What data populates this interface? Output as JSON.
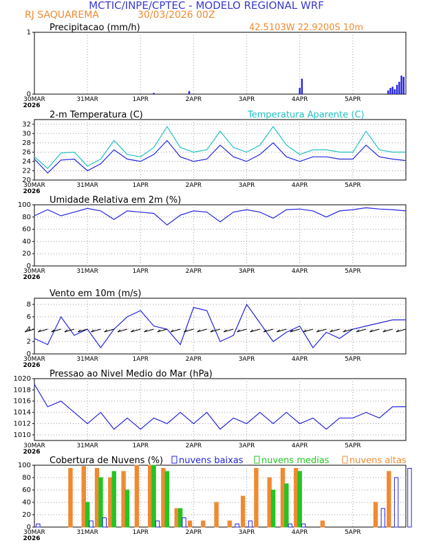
{
  "header": {
    "title": "MCTIC/INPE/CPTEC - MODELO REGIONAL WRF",
    "location": "RJ SAQUAREMA",
    "run": "30/03/2026 00Z",
    "coords": "42.5103W 22.9200S 10m"
  },
  "colors": {
    "title": "#3a3acc",
    "orange": "#f08a30",
    "blue": "#2222dd",
    "cyan": "#22c0c0",
    "green": "#22c522",
    "black": "#000000",
    "grid": "#999999"
  },
  "xaxis": {
    "ticks": [
      {
        "label": "30MAR",
        "sub": "2026",
        "hour": 0
      },
      {
        "label": "31MAR",
        "sub": "",
        "hour": 24
      },
      {
        "label": "1APR",
        "sub": "",
        "hour": 48
      },
      {
        "label": "2APR",
        "sub": "",
        "hour": 72
      },
      {
        "label": "3APR",
        "sub": "",
        "hour": 96
      },
      {
        "label": "4APR",
        "sub": "",
        "hour": 120
      },
      {
        "label": "5APR",
        "sub": "",
        "hour": 144
      }
    ],
    "max_hour": 168
  },
  "chart_data": [
    {
      "id": "precip",
      "type": "bar",
      "title": "Precipitacao (mm/h)",
      "ylim": [
        0,
        1
      ],
      "yticks": [
        0,
        1
      ],
      "x_hours": [
        54,
        70,
        120,
        121,
        160,
        161,
        162,
        163,
        164,
        165,
        166,
        167
      ],
      "values": [
        0.02,
        0.05,
        0.1,
        0.25,
        0.06,
        0.1,
        0.12,
        0.08,
        0.15,
        0.2,
        0.3,
        0.28
      ]
    },
    {
      "id": "temp",
      "type": "line",
      "title": "2-m Temperatura (C)",
      "ylim": [
        20,
        33
      ],
      "yticks": [
        20,
        22,
        24,
        26,
        28,
        30,
        32
      ],
      "x_hours": [
        0,
        6,
        12,
        18,
        24,
        30,
        36,
        42,
        48,
        54,
        60,
        66,
        72,
        78,
        84,
        90,
        96,
        102,
        108,
        114,
        120,
        126,
        132,
        138,
        144,
        150,
        156,
        162,
        168
      ],
      "series": [
        {
          "name": "2-m Temperatura (C)",
          "color_key": "blue",
          "values": [
            24.5,
            21.5,
            24.3,
            24.5,
            22.0,
            23.5,
            26.5,
            24.5,
            24.0,
            25.5,
            28.5,
            25.0,
            24.0,
            24.5,
            27.5,
            25.0,
            24.0,
            25.5,
            28.0,
            25.0,
            24.0,
            25.0,
            25.0,
            24.5,
            24.5,
            27.5,
            25.0,
            24.5,
            24.2
          ]
        },
        {
          "name": "Temperatura Aparente (C)",
          "color_key": "cyan",
          "values": [
            25.0,
            22.5,
            25.8,
            26.0,
            23.0,
            24.5,
            28.5,
            25.5,
            25.0,
            27.0,
            31.5,
            27.0,
            26.0,
            26.5,
            30.5,
            27.0,
            26.0,
            27.5,
            31.5,
            27.5,
            25.5,
            26.5,
            26.5,
            26.0,
            26.0,
            30.5,
            26.5,
            26.0,
            26.0
          ]
        }
      ]
    },
    {
      "id": "rh",
      "type": "line",
      "title": "Umidade Relativa em 2m (%)",
      "ylim": [
        0,
        100
      ],
      "yticks": [
        0,
        20,
        40,
        60,
        80,
        100
      ],
      "x_hours": [
        0,
        6,
        12,
        18,
        24,
        30,
        36,
        42,
        48,
        54,
        60,
        66,
        72,
        78,
        84,
        90,
        96,
        102,
        108,
        114,
        120,
        126,
        132,
        138,
        144,
        150,
        156,
        162,
        168
      ],
      "series": [
        {
          "name": "Umidade Relativa em 2m (%)",
          "color_key": "blue",
          "values": [
            82,
            92,
            82,
            88,
            94,
            90,
            76,
            90,
            88,
            86,
            67,
            83,
            90,
            88,
            72,
            88,
            92,
            88,
            78,
            92,
            93,
            90,
            80,
            90,
            92,
            95,
            93,
            92,
            90
          ]
        }
      ]
    },
    {
      "id": "wind",
      "type": "line",
      "title": "Vento em 10m (m/s)",
      "ylim": [
        0,
        9
      ],
      "yticks": [
        0,
        2,
        4,
        6,
        8
      ],
      "x_hours": [
        0,
        6,
        12,
        18,
        24,
        30,
        36,
        42,
        48,
        54,
        60,
        66,
        72,
        78,
        84,
        90,
        96,
        102,
        108,
        114,
        120,
        126,
        132,
        138,
        144,
        150,
        156,
        162,
        168
      ],
      "series": [
        {
          "name": "Vento em 10m (m/s)",
          "color_key": "blue",
          "values": [
            2.5,
            1.5,
            6.0,
            3.0,
            4.0,
            1.0,
            4.0,
            6.0,
            7.0,
            4.5,
            4.0,
            1.5,
            7.5,
            7.0,
            2.0,
            3.0,
            8.0,
            5.0,
            2.0,
            3.5,
            4.5,
            1.0,
            3.5,
            2.5,
            4.0,
            4.5,
            5.0,
            5.5,
            5.5
          ]
        }
      ]
    },
    {
      "id": "press",
      "type": "line",
      "title": "Pressao ao Nivel Medio do Mar (hPa)",
      "ylim": [
        1009,
        1020
      ],
      "yticks": [
        1010,
        1012,
        1014,
        1016,
        1018,
        1020
      ],
      "x_hours": [
        0,
        6,
        12,
        18,
        24,
        30,
        36,
        42,
        48,
        54,
        60,
        66,
        72,
        78,
        84,
        90,
        96,
        102,
        108,
        114,
        120,
        126,
        132,
        138,
        144,
        150,
        156,
        162,
        168
      ],
      "series": [
        {
          "name": "Pressao ao Nivel Medio do Mar (hPa)",
          "color_key": "blue",
          "values": [
            1019,
            1015,
            1016,
            1014,
            1012,
            1014,
            1011,
            1013,
            1011,
            1013,
            1012,
            1014,
            1012,
            1014,
            1011,
            1013,
            1012,
            1014,
            1012,
            1014,
            1012,
            1013,
            1011,
            1013,
            1013,
            1014,
            1013,
            1015,
            1015
          ]
        }
      ]
    },
    {
      "id": "clouds",
      "type": "bar",
      "title": "Cobertura de Nuvens (%)",
      "ylim": [
        0,
        100
      ],
      "yticks": [
        0,
        20,
        40,
        60,
        80,
        100
      ],
      "legend": [
        "nuvens baixas",
        "nuvens medias",
        "nuvens altas"
      ],
      "x_hours": [
        0,
        6,
        12,
        18,
        24,
        30,
        36,
        42,
        48,
        54,
        60,
        66,
        72,
        78,
        84,
        90,
        96,
        102,
        108,
        114,
        120,
        126,
        132,
        138,
        144,
        150,
        156,
        162,
        168
      ],
      "series": [
        {
          "name": "nuvens altas",
          "color_key": "orange",
          "values": [
            0,
            0,
            0,
            95,
            98,
            95,
            80,
            90,
            100,
            100,
            95,
            30,
            10,
            10,
            40,
            10,
            50,
            95,
            80,
            95,
            95,
            0,
            10,
            0,
            0,
            0,
            40,
            90,
            0
          ]
        },
        {
          "name": "nuvens medias",
          "color_key": "green",
          "values": [
            0,
            0,
            0,
            0,
            40,
            80,
            90,
            60,
            0,
            100,
            90,
            30,
            0,
            0,
            0,
            0,
            0,
            0,
            60,
            70,
            90,
            0,
            0,
            0,
            0,
            0,
            0,
            0,
            0
          ]
        },
        {
          "name": "nuvens baixas",
          "color_key": "blue",
          "values": [
            5,
            0,
            0,
            0,
            10,
            15,
            0,
            0,
            0,
            10,
            0,
            15,
            0,
            0,
            0,
            5,
            10,
            0,
            0,
            5,
            5,
            0,
            0,
            0,
            0,
            0,
            30,
            80,
            95
          ]
        }
      ]
    }
  ]
}
